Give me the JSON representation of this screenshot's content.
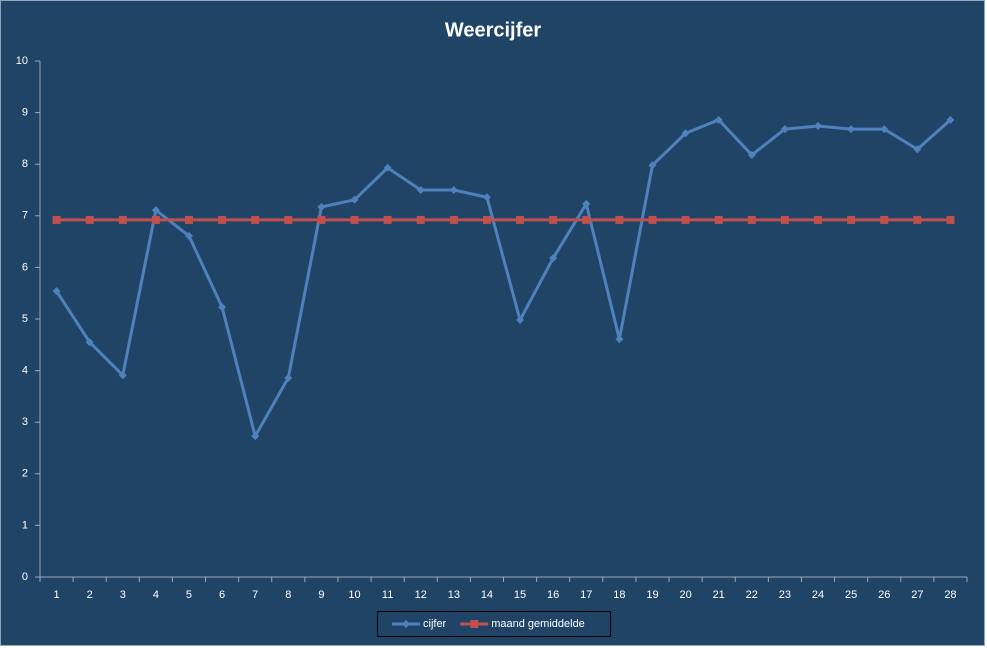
{
  "chart_data": {
    "type": "line",
    "title": "Weercijfer",
    "categories": [
      "1",
      "2",
      "3",
      "4",
      "5",
      "6",
      "7",
      "8",
      "9",
      "10",
      "11",
      "12",
      "13",
      "14",
      "15",
      "16",
      "17",
      "18",
      "19",
      "20",
      "21",
      "22",
      "23",
      "24",
      "25",
      "26",
      "27",
      "28"
    ],
    "series": [
      {
        "name": "cijfer",
        "color": "#4f81bd",
        "marker": "diamond",
        "values": [
          5.54,
          4.55,
          3.91,
          7.11,
          6.61,
          5.23,
          2.73,
          3.86,
          7.17,
          7.31,
          7.93,
          7.5,
          7.5,
          7.36,
          4.98,
          6.18,
          7.23,
          4.61,
          7.98,
          8.6,
          8.86,
          8.18,
          8.68,
          8.74,
          8.68,
          8.68,
          8.29,
          8.86
        ]
      },
      {
        "name": "maand gemiddelde",
        "color": "#c0504d",
        "marker": "square",
        "values": [
          6.92,
          6.92,
          6.92,
          6.92,
          6.92,
          6.92,
          6.92,
          6.92,
          6.92,
          6.92,
          6.92,
          6.92,
          6.92,
          6.92,
          6.92,
          6.92,
          6.92,
          6.92,
          6.92,
          6.92,
          6.92,
          6.92,
          6.92,
          6.92,
          6.92,
          6.92,
          6.92,
          6.92
        ]
      }
    ],
    "ylim": [
      0,
      10
    ],
    "yticks": [
      0,
      1,
      2,
      3,
      4,
      5,
      6,
      7,
      8,
      9,
      10
    ],
    "grid": false,
    "legend": "bottom"
  }
}
